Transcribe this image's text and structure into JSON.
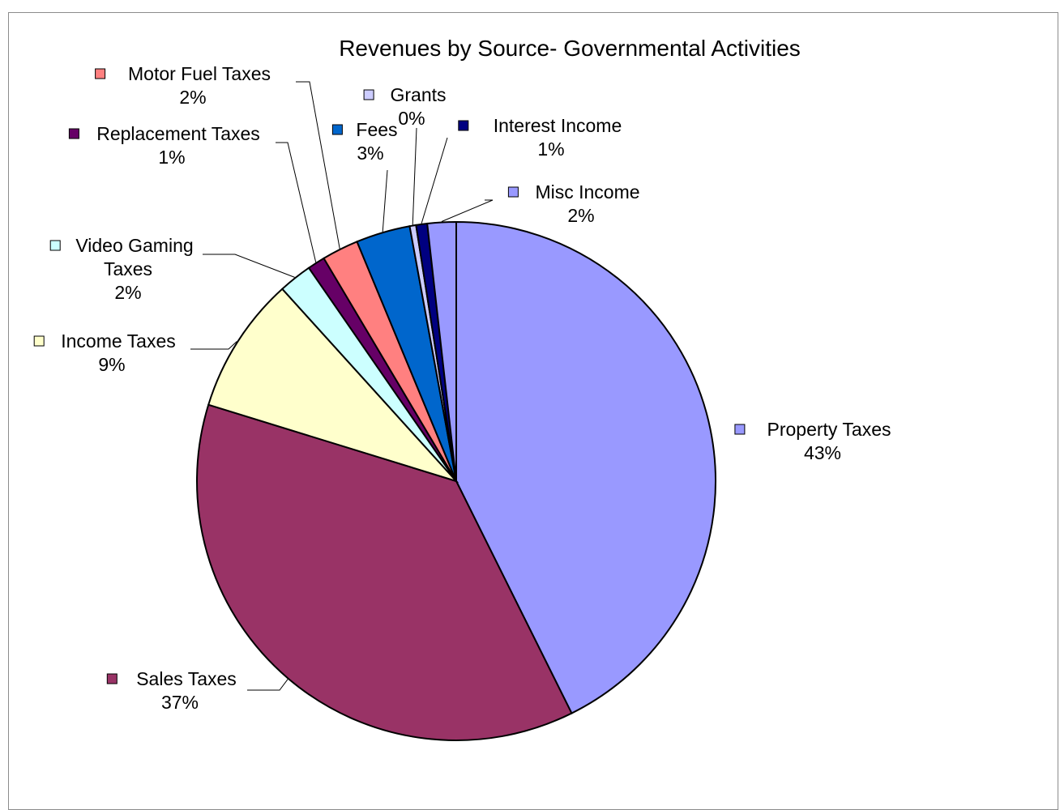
{
  "chart_data": {
    "type": "pie",
    "title": "Revenues by Source- Governmental Activities",
    "slices": [
      {
        "name": "Property Taxes",
        "label_lines": [
          "Property Taxes"
        ],
        "percent_label": "43%",
        "value": 43.0,
        "color": "#9999FF"
      },
      {
        "name": "Sales Taxes",
        "label_lines": [
          "Sales Taxes"
        ],
        "percent_label": "37%",
        "value": 37.4,
        "color": "#993366"
      },
      {
        "name": "Income Taxes",
        "label_lines": [
          "Income Taxes"
        ],
        "percent_label": "9%",
        "value": 8.6,
        "color": "#FFFFCC"
      },
      {
        "name": "Video Gaming Taxes",
        "label_lines": [
          "Video Gaming",
          "Taxes"
        ],
        "percent_label": "2%",
        "value": 2.1,
        "color": "#CCFFFF"
      },
      {
        "name": "Replacement Taxes",
        "label_lines": [
          "Replacement Taxes"
        ],
        "percent_label": "1%",
        "value": 1.1,
        "color": "#660066"
      },
      {
        "name": "Motor Fuel Taxes",
        "label_lines": [
          "Motor Fuel Taxes"
        ],
        "percent_label": "2%",
        "value": 2.3,
        "color": "#FF8080"
      },
      {
        "name": "Fees",
        "label_lines": [
          "Fees"
        ],
        "percent_label": "3%",
        "value": 3.4,
        "color": "#0066CC"
      },
      {
        "name": "Grants",
        "label_lines": [
          "Grants"
        ],
        "percent_label": "0%",
        "value": 0.4,
        "color": "#CCCCFF"
      },
      {
        "name": "Interest Income",
        "label_lines": [
          "Interest Income"
        ],
        "percent_label": "1%",
        "value": 0.7,
        "color": "#000080"
      },
      {
        "name": "Misc Income",
        "label_lines": [
          "Misc Income"
        ],
        "percent_label": "2%",
        "value": 1.8,
        "color": "#9999FF"
      }
    ],
    "legend": "none",
    "data_labels": "category name and percent"
  }
}
